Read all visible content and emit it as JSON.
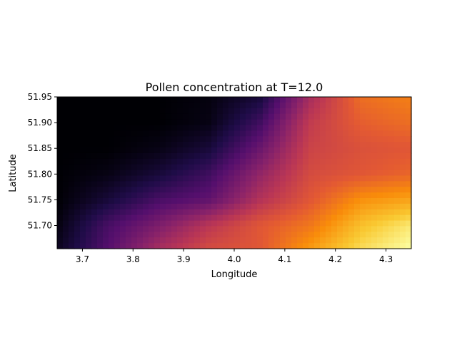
{
  "chart_data": {
    "type": "heatmap",
    "title": "Pollen concentration at T=12.0",
    "xlabel": "Longitude",
    "ylabel": "Latitude",
    "xlim": [
      3.65,
      4.35
    ],
    "ylim": [
      51.655,
      51.95
    ],
    "xticks": [
      3.7,
      3.8,
      3.9,
      4.0,
      4.1,
      4.2,
      4.3
    ],
    "xtick_labels": [
      "3.7",
      "3.8",
      "3.9",
      "4.0",
      "4.1",
      "4.2",
      "4.3"
    ],
    "yticks": [
      51.7,
      51.75,
      51.8,
      51.85,
      51.9,
      51.95
    ],
    "ytick_labels": [
      "51.70",
      "51.75",
      "51.80",
      "51.85",
      "51.90",
      "51.95"
    ],
    "colormap": "inferno",
    "colorbar": false,
    "grid": false,
    "interpolation": "bilinear",
    "grid_x": [
      3.65,
      3.75,
      3.85,
      3.95,
      4.05,
      4.15,
      4.25,
      4.35
    ],
    "grid_y": [
      51.95,
      51.9,
      51.85,
      51.8,
      51.75,
      51.7,
      51.655
    ],
    "values": [
      [
        0.0,
        0.0,
        0.0,
        0.02,
        0.1,
        0.45,
        0.68,
        0.72
      ],
      [
        0.0,
        0.0,
        0.0,
        0.03,
        0.2,
        0.52,
        0.64,
        0.68
      ],
      [
        0.0,
        0.0,
        0.03,
        0.1,
        0.3,
        0.55,
        0.6,
        0.62
      ],
      [
        0.0,
        0.03,
        0.1,
        0.2,
        0.4,
        0.58,
        0.62,
        0.66
      ],
      [
        0.0,
        0.1,
        0.22,
        0.28,
        0.48,
        0.62,
        0.76,
        0.8
      ],
      [
        0.02,
        0.22,
        0.35,
        0.5,
        0.62,
        0.7,
        0.86,
        0.95
      ],
      [
        0.05,
        0.25,
        0.45,
        0.58,
        0.62,
        0.78,
        0.92,
        1.0
      ]
    ]
  }
}
